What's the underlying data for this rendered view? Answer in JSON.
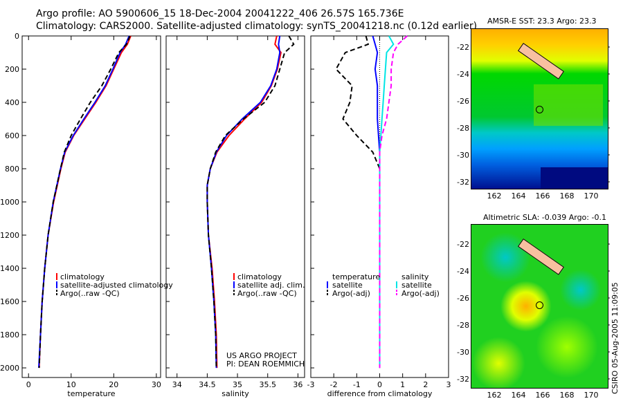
{
  "title_line1": "Argo profile: AO 5900606_15 18-Dec-2004 20041222_406 26.57S 165.736E",
  "title_line2": "Climatology: CARS2000. Satellite-adjusted climatology: synTS_20041218.nc (0.12d earlier)",
  "stamp": "CSIRO 05-Aug-2005 11:09:05",
  "colors": {
    "climatology": "#ff0000",
    "satellite": "#0000ff",
    "argo": "#000000",
    "sal_satellite": "#00e5e5",
    "sal_argo": "#ff00ff"
  },
  "chart_data": [
    {
      "type": "line",
      "xlabel": "temperature",
      "ylabel": "",
      "xlim": [
        -1.5,
        31
      ],
      "ylim": [
        2058,
        0
      ],
      "xticks": [
        "0",
        "10",
        "20",
        "30"
      ],
      "yticks": [
        "0",
        "200",
        "400",
        "600",
        "800",
        "1000",
        "1200",
        "1400",
        "1600",
        "1800",
        "2000"
      ],
      "depth": [
        0,
        50,
        100,
        200,
        300,
        400,
        500,
        600,
        700,
        800,
        1000,
        1200,
        1400,
        1600,
        1800,
        2000
      ],
      "series": [
        {
          "name": "climatology",
          "values": [
            24,
            23.2,
            21.8,
            20,
            18.2,
            15.8,
            13.2,
            10.6,
            8.6,
            7.6,
            5.9,
            4.6,
            3.8,
            3.2,
            2.8,
            2.5
          ]
        },
        {
          "name": "satellite-adjusted climatology",
          "values": [
            23.6,
            22.8,
            21.5,
            19.8,
            18,
            15.6,
            13,
            10.5,
            8.5,
            7.5,
            5.8,
            4.6,
            3.8,
            3.2,
            2.8,
            2.4
          ]
        },
        {
          "name": "Argo(..raw -QC)",
          "values": [
            23.8,
            23,
            21.2,
            19.3,
            17.2,
            14.5,
            12.2,
            10,
            8.4,
            7.5,
            5.8,
            4.6,
            3.8,
            3.2,
            2.8,
            2.5
          ]
        }
      ],
      "legend": [
        "climatology",
        "satellite-adjusted climatology",
        "Argo(..raw -QC)"
      ]
    },
    {
      "type": "line",
      "xlabel": "salinity",
      "xlim": [
        33.82,
        36.11
      ],
      "ylim": [
        2058,
        0
      ],
      "xticks": [
        "34",
        "34.5",
        "35",
        "35.5",
        "36"
      ],
      "depth": [
        0,
        50,
        100,
        200,
        300,
        400,
        500,
        600,
        700,
        800,
        900,
        1000,
        1200,
        1400,
        1600,
        1800,
        2000
      ],
      "series": [
        {
          "name": "climatology",
          "values": [
            35.65,
            35.62,
            35.72,
            35.66,
            35.56,
            35.4,
            35.12,
            34.86,
            34.66,
            34.55,
            34.5,
            34.5,
            34.52,
            34.58,
            34.62,
            34.65,
            34.66
          ]
        },
        {
          "name": "satellite adj. clim.",
          "values": [
            35.7,
            35.68,
            35.7,
            35.65,
            35.55,
            35.38,
            35.08,
            34.82,
            34.65,
            34.55,
            34.5,
            34.5,
            34.52,
            34.57,
            34.61,
            34.64,
            34.65
          ]
        },
        {
          "name": "Argo(..raw -QC)",
          "values": [
            35.85,
            35.93,
            35.78,
            35.7,
            35.62,
            35.45,
            35.1,
            34.8,
            34.64,
            34.55,
            34.5,
            34.5,
            34.52,
            34.57,
            34.61,
            34.64,
            34.65
          ]
        }
      ],
      "legend": [
        "climatology",
        "satellite adj. clim.",
        "Argo(..raw -QC)"
      ],
      "annotation": [
        "US ARGO PROJECT",
        "PI: DEAN ROEMMICH"
      ]
    },
    {
      "type": "line",
      "xlabel": "difference from climatology",
      "xlim": [
        -3,
        3
      ],
      "ylim": [
        2058,
        0
      ],
      "xticks": [
        "-3",
        "-2",
        "-1",
        "0",
        "1",
        "2",
        "3"
      ],
      "depth": [
        0,
        50,
        100,
        200,
        300,
        400,
        500,
        600,
        700,
        800,
        1000,
        1200,
        1400,
        1600,
        1800,
        2000
      ],
      "series": [
        {
          "name": "temperature satellite",
          "values": [
            -0.3,
            -0.2,
            -0.1,
            -0.2,
            -0.1,
            -0.1,
            -0.1,
            -0.05,
            0,
            0,
            0,
            0,
            0,
            0,
            0,
            0
          ]
        },
        {
          "name": "temperature Argo(-adj)",
          "values": [
            -0.6,
            -0.5,
            -1.5,
            -1.9,
            -1.2,
            -1.3,
            -1.6,
            -1,
            -0.3,
            0,
            0,
            0,
            0,
            0,
            0,
            0
          ]
        },
        {
          "name": "salinity satellite",
          "values": [
            0.4,
            0.6,
            0.3,
            0.25,
            0.2,
            0.15,
            0.1,
            0.05,
            0,
            0,
            0,
            0,
            0,
            0,
            0,
            0
          ]
        },
        {
          "name": "salinity Argo(-adj)",
          "values": [
            1.2,
            0.8,
            0.6,
            0.5,
            0.5,
            0.4,
            0.3,
            0.1,
            0,
            0,
            0,
            0,
            0,
            0,
            0,
            0
          ]
        }
      ],
      "legend_titles": [
        "temperature",
        "salinity"
      ],
      "legend": [
        "satellite",
        "Argo(-adj)",
        "satellite",
        "Argo(-adj)"
      ]
    }
  ],
  "maps": [
    {
      "title": "AMSR-E SST: 23.3 Argo: 23.3",
      "xticks": [
        "162",
        "164",
        "166",
        "168",
        "170"
      ],
      "yticks": [
        "-22",
        "-24",
        "-26",
        "-28",
        "-30",
        "-32"
      ]
    },
    {
      "title": "Altimetric SLA: -0.039 Argo: -0.1",
      "xticks": [
        "162",
        "164",
        "166",
        "168",
        "170"
      ],
      "yticks": [
        "-22",
        "-24",
        "-26",
        "-28",
        "-30",
        "-32"
      ]
    }
  ]
}
